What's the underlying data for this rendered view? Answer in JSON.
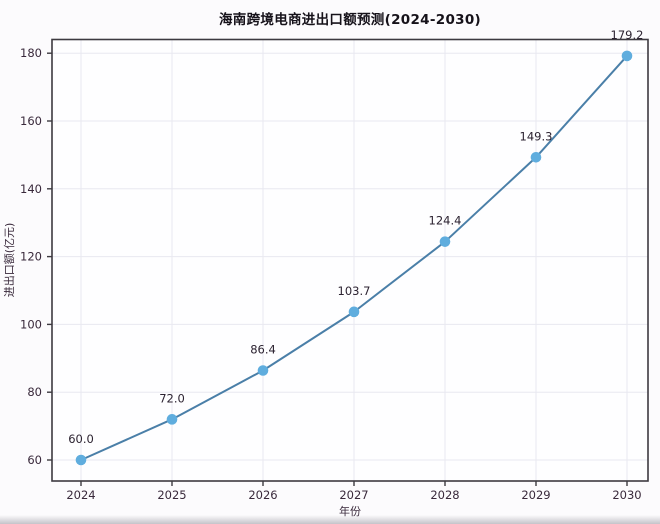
{
  "figure": {
    "background": "#fcfbfd",
    "plot_background": "#fefeff",
    "grid_color": "#e8e8f0",
    "spine_color": "#3d3a40",
    "tick_label_color": "#39293b",
    "title_color": "#16121a",
    "line_color": "#4a7fa8",
    "marker_color": "#5fadde",
    "data_label_color": "#2c2331"
  },
  "chart_data": {
    "type": "line",
    "title": "海南跨境电商进出口额预测(2024-2030)",
    "xlabel": "年份",
    "ylabel": "进出口额(亿元)",
    "categories": [
      "2024",
      "2025",
      "2026",
      "2027",
      "2028",
      "2029",
      "2030"
    ],
    "series": [
      {
        "name": "进出口额预测",
        "values": [
          60.0,
          72.0,
          86.4,
          103.7,
          124.4,
          149.3,
          179.2
        ],
        "point_labels": [
          "60.0",
          "72.0",
          "86.4",
          "103.7",
          "124.4",
          "149.3",
          "179.2"
        ]
      }
    ],
    "y_ticks": [
      60,
      80,
      100,
      120,
      140,
      160,
      180
    ],
    "ylim": [
      54,
      184
    ],
    "grid": true,
    "legend_position": "none",
    "marker": "circle"
  }
}
